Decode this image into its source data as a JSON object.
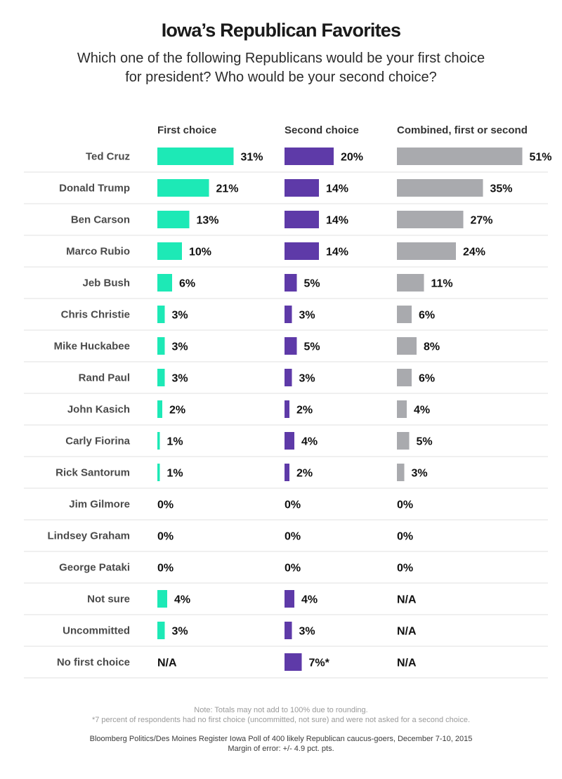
{
  "chart_data": {
    "type": "bar",
    "title": "Iowa’s Republican Favorites",
    "subtitle": "Which one of the following Republicans would be your first choice for president? Who would be your second choice?",
    "categories": [
      "Ted Cruz",
      "Donald Trump",
      "Ben Carson",
      "Marco Rubio",
      "Jeb Bush",
      "Chris Christie",
      "Mike Huckabee",
      "Rand Paul",
      "John Kasich",
      "Carly Fiorina",
      "Rick Santorum",
      "Jim Gilmore",
      "Lindsey Graham",
      "George Pataki",
      "Not sure",
      "Uncommitted",
      "No first choice"
    ],
    "series": [
      {
        "name": "First choice",
        "color": "#1de9b6",
        "values": [
          31,
          21,
          13,
          10,
          6,
          3,
          3,
          3,
          2,
          1,
          1,
          0,
          0,
          0,
          4,
          3,
          null
        ],
        "labels": [
          "31%",
          "21%",
          "13%",
          "10%",
          "6%",
          "3%",
          "3%",
          "3%",
          "2%",
          "1%",
          "1%",
          "0%",
          "0%",
          "0%",
          "4%",
          "3%",
          "N/A"
        ]
      },
      {
        "name": "Second choice",
        "color": "#5e3aa8",
        "values": [
          20,
          14,
          14,
          14,
          5,
          3,
          5,
          3,
          2,
          4,
          2,
          0,
          0,
          0,
          4,
          3,
          7
        ],
        "labels": [
          "20%",
          "14%",
          "14%",
          "14%",
          "5%",
          "3%",
          "5%",
          "3%",
          "2%",
          "4%",
          "2%",
          "0%",
          "0%",
          "0%",
          "4%",
          "3%",
          "7%*"
        ]
      },
      {
        "name": "Combined, first or second",
        "color": "#a9aaae",
        "values": [
          51,
          35,
          27,
          24,
          11,
          6,
          8,
          6,
          4,
          5,
          3,
          0,
          0,
          0,
          null,
          null,
          null
        ],
        "labels": [
          "51%",
          "35%",
          "27%",
          "24%",
          "11%",
          "6%",
          "8%",
          "6%",
          "4%",
          "5%",
          "3%",
          "0%",
          "0%",
          "0%",
          "N/A",
          "N/A",
          "N/A"
        ]
      }
    ],
    "value_unit": "%",
    "grid": false,
    "legend": "column headers at top"
  },
  "footnotes": {
    "note": "Note: Totals may not add to 100% due to rounding.",
    "asterisk": "*7 percent of respondents had no first choice (uncommitted, not sure) and were not asked for a second choice.",
    "source": "Bloomberg Politics/Des Moines Register Iowa Poll of 400 likely Republican caucus-goers, December 7-10, 2015",
    "margin": "Margin of error: +/- 4.9 pct. pts."
  }
}
